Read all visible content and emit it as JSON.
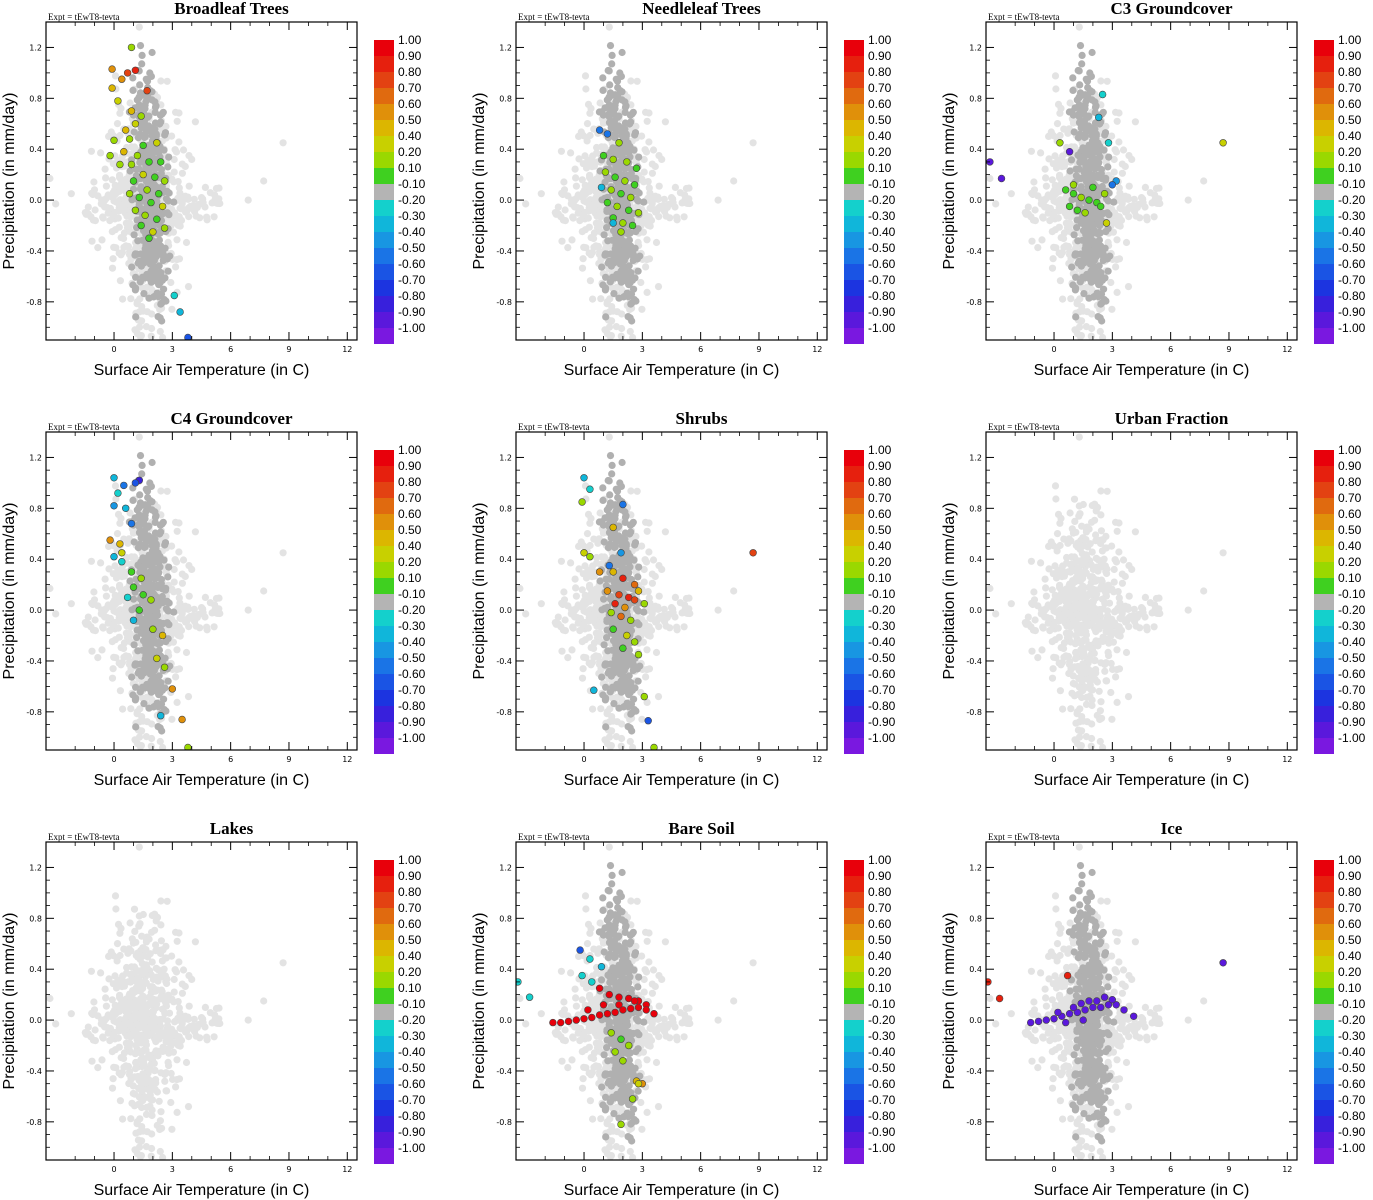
{
  "figure": {
    "expt_label": "Expt = tEwT8-tevta",
    "xlabel": "Surface Air Temperature (in C)",
    "ylabel": "Precipitation (in mm/day)",
    "xticks": [
      "0",
      "3",
      "6",
      "9",
      "12"
    ],
    "yticks": [
      "1.2",
      "0.8",
      "0.4",
      "0.0",
      "-0.4",
      "-0.8"
    ]
  },
  "colorbar": {
    "labels": [
      "1.00",
      "0.90",
      "0.80",
      "0.70",
      "0.60",
      "0.50",
      "0.40",
      "0.20",
      "0.10",
      "-0.10",
      "-0.20",
      "-0.30",
      "-0.40",
      "-0.50",
      "-0.60",
      "-0.70",
      "-0.80",
      "-0.90",
      "-1.00"
    ],
    "colors": [
      "#e8000b",
      "#e6200e",
      "#e34212",
      "#e06a0f",
      "#e0900a",
      "#dcb600",
      "#c8d000",
      "#9ad800",
      "#3fd020",
      "#b4b4b4",
      "#14d0cc",
      "#10b6da",
      "#1896e2",
      "#1a74e6",
      "#1a54e4",
      "#1c34e0",
      "#3820dc",
      "#5a18dc",
      "#7a18e0"
    ]
  },
  "chart_data": [
    {
      "type": "scatter",
      "title": "Broadleaf Trees",
      "xlabel": "Surface Air Temperature (in C)",
      "ylabel": "Precipitation (in mm/day)",
      "xlim": [
        -3.5,
        12.5
      ],
      "ylim": [
        -1.1,
        1.4
      ],
      "colored_points": [
        [
          -0.1,
          1.03
        ],
        [
          0.7,
          1.0
        ],
        [
          1.1,
          1.02
        ],
        [
          0.9,
          1.2
        ],
        [
          -0.1,
          0.88
        ],
        [
          0.4,
          0.95
        ],
        [
          1.7,
          0.86
        ],
        [
          0.2,
          0.78
        ],
        [
          0.9,
          0.7
        ],
        [
          1.4,
          0.66
        ],
        [
          1.1,
          0.6
        ],
        [
          0.6,
          0.55
        ],
        [
          0.0,
          0.47
        ],
        [
          0.8,
          0.48
        ],
        [
          1.5,
          0.43
        ],
        [
          2.2,
          0.45
        ],
        [
          -0.2,
          0.35
        ],
        [
          0.5,
          0.38
        ],
        [
          1.2,
          0.35
        ],
        [
          1.8,
          0.3
        ],
        [
          2.4,
          0.3
        ],
        [
          0.3,
          0.28
        ],
        [
          0.9,
          0.28
        ],
        [
          1.5,
          0.2
        ],
        [
          2.1,
          0.18
        ],
        [
          2.6,
          0.15
        ],
        [
          1.0,
          0.15
        ],
        [
          1.7,
          0.08
        ],
        [
          2.3,
          0.05
        ],
        [
          0.8,
          0.05
        ],
        [
          1.3,
          0.02
        ],
        [
          1.9,
          -0.02
        ],
        [
          2.5,
          -0.05
        ],
        [
          1.1,
          -0.08
        ],
        [
          1.6,
          -0.12
        ],
        [
          2.2,
          -0.15
        ],
        [
          1.4,
          -0.2
        ],
        [
          2.0,
          -0.25
        ],
        [
          2.6,
          -0.22
        ],
        [
          1.8,
          -0.3
        ],
        [
          3.4,
          -0.88
        ],
        [
          3.1,
          -0.75
        ],
        [
          3.8,
          -1.08
        ]
      ],
      "colored_values": [
        0.6,
        0.8,
        0.9,
        0.2,
        0.5,
        0.6,
        0.85,
        0.4,
        0.5,
        0.3,
        0.4,
        0.5,
        0.3,
        0.2,
        0.15,
        0.4,
        0.3,
        0.5,
        0.2,
        0.1,
        0.15,
        0.3,
        0.2,
        0.4,
        0.1,
        0.3,
        0.15,
        0.2,
        0.1,
        0.3,
        0.15,
        0.1,
        0.4,
        0.2,
        0.3,
        0.15,
        0.1,
        0.4,
        0.2,
        0.15,
        -0.3,
        -0.2,
        -0.6
      ]
    },
    {
      "type": "scatter",
      "title": "Needleleaf Trees",
      "xlabel": "Surface Air Temperature (in C)",
      "ylabel": "Precipitation (in mm/day)",
      "xlim": [
        -3.5,
        12.5
      ],
      "ylim": [
        -1.1,
        1.4
      ],
      "colored_points": [
        [
          1.2,
          0.52
        ],
        [
          1.8,
          0.45
        ],
        [
          1.0,
          0.35
        ],
        [
          1.5,
          0.32
        ],
        [
          2.2,
          0.3
        ],
        [
          2.7,
          0.25
        ],
        [
          1.1,
          0.22
        ],
        [
          1.6,
          0.18
        ],
        [
          2.1,
          0.15
        ],
        [
          2.6,
          0.12
        ],
        [
          0.9,
          0.1
        ],
        [
          1.4,
          0.08
        ],
        [
          1.9,
          0.05
        ],
        [
          2.4,
          0.02
        ],
        [
          1.2,
          -0.02
        ],
        [
          1.7,
          -0.05
        ],
        [
          2.3,
          -0.08
        ],
        [
          2.8,
          -0.1
        ],
        [
          1.5,
          -0.14
        ],
        [
          2.0,
          -0.18
        ],
        [
          2.5,
          -0.2
        ],
        [
          1.9,
          -0.25
        ],
        [
          0.8,
          0.55
        ],
        [
          1.5,
          -0.18
        ]
      ],
      "colored_values": [
        -0.5,
        0.2,
        0.15,
        0.3,
        0.2,
        0.1,
        0.3,
        0.15,
        0.2,
        0.1,
        -0.3,
        0.2,
        0.15,
        0.3,
        0.1,
        0.2,
        0.15,
        0.2,
        0.1,
        0.3,
        0.15,
        0.2,
        -0.5,
        -0.3
      ]
    },
    {
      "type": "scatter",
      "title": "C3 Groundcover",
      "xlabel": "Surface Air Temperature (in C)",
      "ylabel": "Precipitation (in mm/day)",
      "xlim": [
        -3.5,
        12.5
      ],
      "ylim": [
        -1.1,
        1.4
      ],
      "colored_points": [
        [
          -3.3,
          0.3
        ],
        [
          -2.7,
          0.17
        ],
        [
          8.7,
          0.45
        ],
        [
          0.3,
          0.45
        ],
        [
          0.8,
          0.38
        ],
        [
          2.5,
          0.83
        ],
        [
          2.3,
          0.65
        ],
        [
          2.8,
          0.45
        ],
        [
          3.2,
          0.15
        ],
        [
          3.0,
          0.12
        ],
        [
          0.6,
          0.08
        ],
        [
          1.0,
          0.05
        ],
        [
          1.4,
          0.02
        ],
        [
          1.8,
          0.0
        ],
        [
          2.2,
          -0.02
        ],
        [
          2.6,
          0.05
        ],
        [
          0.8,
          -0.05
        ],
        [
          1.2,
          -0.08
        ],
        [
          1.6,
          -0.1
        ],
        [
          2.0,
          0.1
        ],
        [
          2.4,
          -0.05
        ],
        [
          1.0,
          0.12
        ],
        [
          2.7,
          -0.18
        ]
      ],
      "colored_values": [
        -0.9,
        -0.9,
        0.4,
        0.2,
        -0.9,
        -0.2,
        -0.3,
        -0.2,
        -0.4,
        -0.5,
        0.1,
        0.15,
        0.2,
        0.1,
        0.15,
        0.2,
        0.1,
        0.15,
        0.2,
        0.1,
        0.15,
        0.2,
        0.4
      ]
    },
    {
      "type": "scatter",
      "title": "C4 Groundcover",
      "xlabel": "Surface Air Temperature (in C)",
      "ylabel": "Precipitation (in mm/day)",
      "xlim": [
        -3.5,
        12.5
      ],
      "ylim": [
        -1.1,
        1.4
      ],
      "colored_points": [
        [
          0.0,
          1.04
        ],
        [
          0.5,
          0.98
        ],
        [
          0.2,
          0.92
        ],
        [
          1.3,
          1.02
        ],
        [
          1.1,
          1.0
        ],
        [
          0.0,
          0.82
        ],
        [
          0.6,
          0.8
        ],
        [
          0.9,
          0.68
        ],
        [
          -0.2,
          0.55
        ],
        [
          0.3,
          0.52
        ],
        [
          0.4,
          0.45
        ],
        [
          0.0,
          0.42
        ],
        [
          0.4,
          0.38
        ],
        [
          0.9,
          0.3
        ],
        [
          1.4,
          0.25
        ],
        [
          1.0,
          0.18
        ],
        [
          1.5,
          0.12
        ],
        [
          1.9,
          0.08
        ],
        [
          0.7,
          0.1
        ],
        [
          1.3,
          0.0
        ],
        [
          1.0,
          -0.08
        ],
        [
          2.0,
          -0.15
        ],
        [
          2.5,
          -0.2
        ],
        [
          2.2,
          -0.38
        ],
        [
          2.6,
          -0.45
        ],
        [
          3.0,
          -0.62
        ],
        [
          2.4,
          -0.83
        ],
        [
          3.5,
          -0.86
        ],
        [
          3.8,
          -1.08
        ]
      ],
      "colored_values": [
        -0.3,
        -0.5,
        -0.2,
        -0.8,
        -0.6,
        -0.4,
        -0.3,
        -0.5,
        0.6,
        0.5,
        0.4,
        -0.3,
        -0.2,
        0.1,
        0.2,
        0.1,
        0.15,
        0.2,
        -0.2,
        0.1,
        -0.3,
        0.2,
        0.5,
        0.4,
        0.3,
        0.6,
        -0.3,
        0.6,
        0.2
      ]
    },
    {
      "type": "scatter",
      "title": "Shrubs",
      "xlabel": "Surface Air Temperature (in C)",
      "ylabel": "Precipitation (in mm/day)",
      "xlim": [
        -3.5,
        12.5
      ],
      "ylim": [
        -1.1,
        1.4
      ],
      "colored_points": [
        [
          0.0,
          1.04
        ],
        [
          0.3,
          0.95
        ],
        [
          2.0,
          0.83
        ],
        [
          -0.1,
          0.85
        ],
        [
          1.5,
          0.65
        ],
        [
          0.0,
          0.45
        ],
        [
          0.3,
          0.42
        ],
        [
          1.3,
          0.35
        ],
        [
          1.9,
          0.45
        ],
        [
          8.7,
          0.45
        ],
        [
          0.8,
          0.3
        ],
        [
          1.5,
          0.3
        ],
        [
          2.0,
          0.25
        ],
        [
          2.6,
          0.2
        ],
        [
          1.2,
          0.15
        ],
        [
          1.8,
          0.12
        ],
        [
          2.3,
          0.1
        ],
        [
          2.8,
          0.15
        ],
        [
          1.6,
          0.05
        ],
        [
          2.1,
          0.02
        ],
        [
          2.6,
          0.08
        ],
        [
          3.1,
          0.05
        ],
        [
          1.4,
          -0.02
        ],
        [
          1.9,
          -0.05
        ],
        [
          2.4,
          -0.08
        ],
        [
          1.5,
          -0.15
        ],
        [
          2.2,
          -0.2
        ],
        [
          2.6,
          -0.25
        ],
        [
          2.0,
          -0.3
        ],
        [
          2.8,
          -0.35
        ],
        [
          0.5,
          -0.63
        ],
        [
          3.1,
          -0.68
        ],
        [
          3.3,
          -0.87
        ],
        [
          3.6,
          -1.08
        ]
      ],
      "colored_values": [
        -0.3,
        -0.2,
        -0.5,
        0.2,
        0.5,
        0.4,
        0.3,
        -0.5,
        -0.4,
        0.8,
        0.6,
        0.5,
        0.9,
        0.7,
        0.6,
        0.8,
        0.9,
        0.5,
        0.9,
        0.6,
        0.8,
        0.2,
        0.3,
        0.7,
        0.2,
        0.1,
        0.4,
        0.2,
        0.15,
        0.2,
        -0.3,
        0.2,
        -0.6,
        0.2
      ]
    },
    {
      "type": "scatter",
      "title": "Urban Fraction",
      "xlabel": "Surface Air Temperature (in C)",
      "ylabel": "Precipitation (in mm/day)",
      "xlim": [
        -3.5,
        12.5
      ],
      "ylim": [
        -1.1,
        1.4
      ],
      "colored_points": [],
      "colored_values": []
    },
    {
      "type": "scatter",
      "title": "Lakes",
      "xlabel": "Surface Air Temperature (in C)",
      "ylabel": "Precipitation (in mm/day)",
      "xlim": [
        -3.5,
        12.5
      ],
      "ylim": [
        -1.1,
        1.4
      ],
      "colored_points": [],
      "colored_values": []
    },
    {
      "type": "scatter",
      "title": "Bare Soil",
      "xlabel": "Surface Air Temperature (in C)",
      "ylabel": "Precipitation (in mm/day)",
      "xlim": [
        -3.5,
        12.5
      ],
      "ylim": [
        -1.1,
        1.4
      ],
      "colored_points": [
        [
          -3.4,
          0.3
        ],
        [
          -2.8,
          0.18
        ],
        [
          -0.2,
          0.55
        ],
        [
          0.3,
          0.48
        ],
        [
          0.9,
          0.42
        ],
        [
          -0.1,
          0.35
        ],
        [
          0.4,
          0.3
        ],
        [
          0.8,
          0.25
        ],
        [
          1.3,
          0.2
        ],
        [
          1.8,
          0.18
        ],
        [
          2.3,
          0.17
        ],
        [
          2.8,
          0.15
        ],
        [
          3.2,
          0.12
        ],
        [
          -1.6,
          -0.02
        ],
        [
          -1.2,
          -0.02
        ],
        [
          -0.8,
          -0.01
        ],
        [
          -0.4,
          0.0
        ],
        [
          0.0,
          0.01
        ],
        [
          0.4,
          0.02
        ],
        [
          0.8,
          0.04
        ],
        [
          1.2,
          0.05
        ],
        [
          1.6,
          0.06
        ],
        [
          2.0,
          0.08
        ],
        [
          2.4,
          0.09
        ],
        [
          2.8,
          0.1
        ],
        [
          3.2,
          0.08
        ],
        [
          3.6,
          0.05
        ],
        [
          0.2,
          0.08
        ],
        [
          1.0,
          0.12
        ],
        [
          1.8,
          0.12
        ],
        [
          2.6,
          0.15
        ],
        [
          1.4,
          -0.1
        ],
        [
          1.9,
          -0.15
        ],
        [
          2.3,
          -0.2
        ],
        [
          1.6,
          -0.25
        ],
        [
          2.0,
          -0.32
        ],
        [
          2.7,
          -0.48
        ],
        [
          3.0,
          -0.5
        ],
        [
          2.5,
          -0.62
        ],
        [
          1.9,
          -0.82
        ],
        [
          2.8,
          -0.5
        ]
      ],
      "colored_values": [
        -0.2,
        -0.2,
        -0.6,
        -0.2,
        -0.3,
        -0.2,
        -0.2,
        1.0,
        1.0,
        1.0,
        1.0,
        1.0,
        1.0,
        1.0,
        1.0,
        1.0,
        1.0,
        1.0,
        1.0,
        1.0,
        1.0,
        1.0,
        1.0,
        1.0,
        1.0,
        1.0,
        1.0,
        1.0,
        1.0,
        1.0,
        1.0,
        0.2,
        0.15,
        0.3,
        0.2,
        0.2,
        0.5,
        0.6,
        0.2,
        0.2,
        0.4
      ]
    },
    {
      "type": "scatter",
      "title": "Ice",
      "xlabel": "Surface Air Temperature (in C)",
      "ylabel": "Precipitation (in mm/day)",
      "xlim": [
        -3.5,
        12.5
      ],
      "ylim": [
        -1.1,
        1.4
      ],
      "colored_points": [
        [
          -3.4,
          0.3
        ],
        [
          -2.8,
          0.17
        ],
        [
          0.7,
          0.35
        ],
        [
          8.7,
          0.45
        ],
        [
          -1.2,
          -0.02
        ],
        [
          -0.8,
          -0.01
        ],
        [
          -0.4,
          0.0
        ],
        [
          0.0,
          0.01
        ],
        [
          0.4,
          0.03
        ],
        [
          0.8,
          0.05
        ],
        [
          1.2,
          0.06
        ],
        [
          1.6,
          0.08
        ],
        [
          2.0,
          0.1
        ],
        [
          2.4,
          0.1
        ],
        [
          2.8,
          0.12
        ],
        [
          3.2,
          0.12
        ],
        [
          3.6,
          0.08
        ],
        [
          4.1,
          0.03
        ],
        [
          0.2,
          0.06
        ],
        [
          1.0,
          0.1
        ],
        [
          1.8,
          0.15
        ],
        [
          2.6,
          0.18
        ],
        [
          1.4,
          0.13
        ],
        [
          2.2,
          0.15
        ],
        [
          3.0,
          0.16
        ],
        [
          0.6,
          -0.02
        ],
        [
          1.5,
          0.0
        ]
      ],
      "colored_values": [
        0.9,
        0.9,
        0.9,
        -0.9,
        -0.9,
        -0.9,
        -0.9,
        -0.9,
        -0.9,
        -0.9,
        -0.9,
        -0.9,
        -0.9,
        -0.9,
        -0.9,
        -0.9,
        -0.9,
        -0.9,
        -0.9,
        -0.9,
        -0.9,
        -0.9,
        -0.9,
        -0.9,
        -0.9,
        -0.9,
        -0.9
      ]
    }
  ]
}
